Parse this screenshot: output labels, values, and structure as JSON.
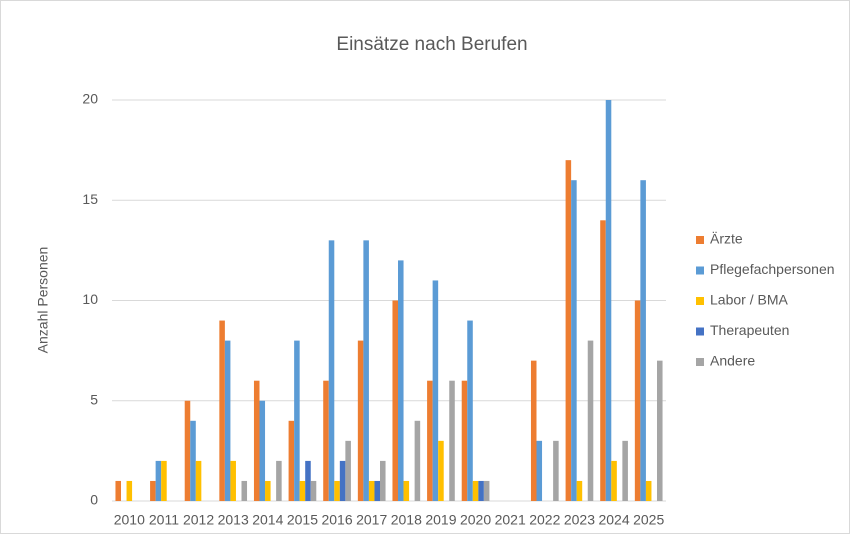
{
  "chart_data": {
    "type": "bar",
    "title": "Einsätze nach Berufen",
    "y_label": "Anzahl Personen",
    "categories": [
      "2010",
      "2011",
      "2012",
      "2013",
      "2014",
      "2015",
      "2016",
      "2017",
      "2018",
      "2019",
      "2020",
      "2021",
      "2022",
      "2023",
      "2024",
      "2025"
    ],
    "series": [
      {
        "name": "Ärzte",
        "color": "#ed7d31",
        "values": [
          1,
          1,
          5,
          9,
          6,
          4,
          6,
          8,
          10,
          6,
          6,
          null,
          7,
          17,
          14,
          10
        ]
      },
      {
        "name": "Pflegefachpersonen",
        "color": "#5b9bd5",
        "values": [
          null,
          2,
          4,
          8,
          5,
          8,
          13,
          13,
          12,
          11,
          9,
          null,
          3,
          16,
          20,
          16
        ]
      },
      {
        "name": "Labor / BMA",
        "color": "#ffc000",
        "values": [
          1,
          2,
          2,
          2,
          1,
          1,
          1,
          1,
          1,
          3,
          1,
          null,
          null,
          1,
          2,
          1
        ]
      },
      {
        "name": "Therapeuten",
        "color": "#4472c4",
        "values": [
          null,
          null,
          null,
          null,
          null,
          2,
          2,
          1,
          null,
          null,
          1,
          null,
          null,
          null,
          null,
          null
        ]
      },
      {
        "name": "Andere",
        "color": "#a5a5a5",
        "values": [
          null,
          null,
          null,
          1,
          2,
          1,
          3,
          2,
          4,
          6,
          1,
          null,
          3,
          8,
          3,
          7
        ]
      }
    ],
    "ylim": [
      0,
      20
    ],
    "yticks": [
      0,
      5,
      10,
      15,
      20
    ],
    "grid": true,
    "legend": "right"
  }
}
